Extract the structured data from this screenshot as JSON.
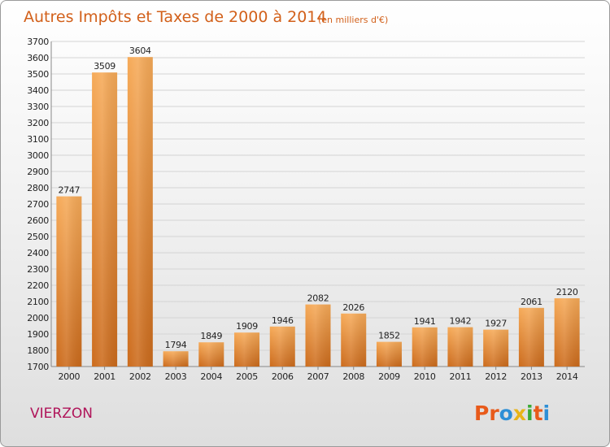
{
  "chart_data": {
    "type": "bar",
    "title": "Autres Impôts et Taxes de 2000 à 2014",
    "subtitle": "(en milliers d'€)",
    "categories": [
      "2000",
      "2001",
      "2002",
      "2003",
      "2004",
      "2005",
      "2006",
      "2007",
      "2008",
      "2009",
      "2010",
      "2011",
      "2012",
      "2013",
      "2014"
    ],
    "values": [
      2747,
      3509,
      3604,
      1794,
      1849,
      1909,
      1946,
      2082,
      2026,
      1852,
      1941,
      1942,
      1927,
      2061,
      2120
    ],
    "ylim": [
      1700,
      3700
    ],
    "ytick_step": 100,
    "grid": true,
    "bar_color": "#f0a050"
  },
  "footer": {
    "town": "VIERZON",
    "logo": {
      "letters": [
        "P",
        "r",
        "o",
        "x",
        "i",
        "t",
        "i"
      ],
      "colors": [
        "#e85a1a",
        "#e85a1a",
        "#2d8fd6",
        "#e8b418",
        "#3aaa35",
        "#e85a1a",
        "#2d8fd6"
      ]
    }
  }
}
